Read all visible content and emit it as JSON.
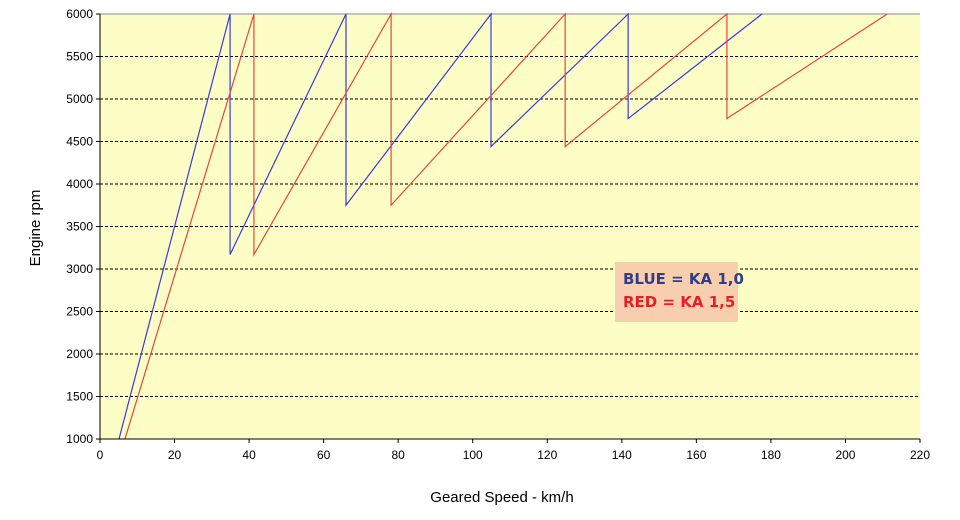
{
  "chart_data": {
    "type": "line",
    "title": "",
    "xlabel": "Geared Speed - km/h",
    "ylabel": "Engine rpm",
    "xlim": [
      0,
      220
    ],
    "ylim": [
      1000,
      6000
    ],
    "xticks": [
      0,
      20,
      40,
      60,
      80,
      100,
      120,
      140,
      160,
      180,
      200,
      220
    ],
    "yticks": [
      1000,
      1500,
      2000,
      2500,
      3000,
      3500,
      4000,
      4500,
      5000,
      5500,
      6000
    ],
    "grid": "horizontal dashed",
    "background": "#fdfdc6",
    "legend": {
      "placement": "center-right",
      "background": "#f8cfae",
      "entries": [
        {
          "text": "BLUE = KA 1,0",
          "color": "#2f3d8a"
        },
        {
          "text": "RED = KA 1,5",
          "color": "#e3202a"
        }
      ]
    },
    "series": [
      {
        "color": "#3a3adf",
        "points": [
          [
            5.1,
            1000
          ],
          [
            34.9,
            6000
          ],
          [
            34.9,
            3170
          ],
          [
            66,
            6000
          ],
          [
            66,
            3750
          ],
          [
            104.9,
            6000
          ],
          [
            104.9,
            4440
          ],
          [
            141.7,
            6000
          ],
          [
            141.7,
            4770
          ],
          [
            177.6,
            6000
          ]
        ]
      },
      {
        "color": "#e8453c",
        "points": [
          [
            6.7,
            1000
          ],
          [
            41.3,
            6000
          ],
          [
            41.3,
            3170
          ],
          [
            78.1,
            6000
          ],
          [
            78.1,
            3750
          ],
          [
            124.8,
            6000
          ],
          [
            124.8,
            4440
          ],
          [
            168.2,
            6000
          ],
          [
            168.2,
            4770
          ],
          [
            211.2,
            6000
          ]
        ]
      }
    ]
  }
}
